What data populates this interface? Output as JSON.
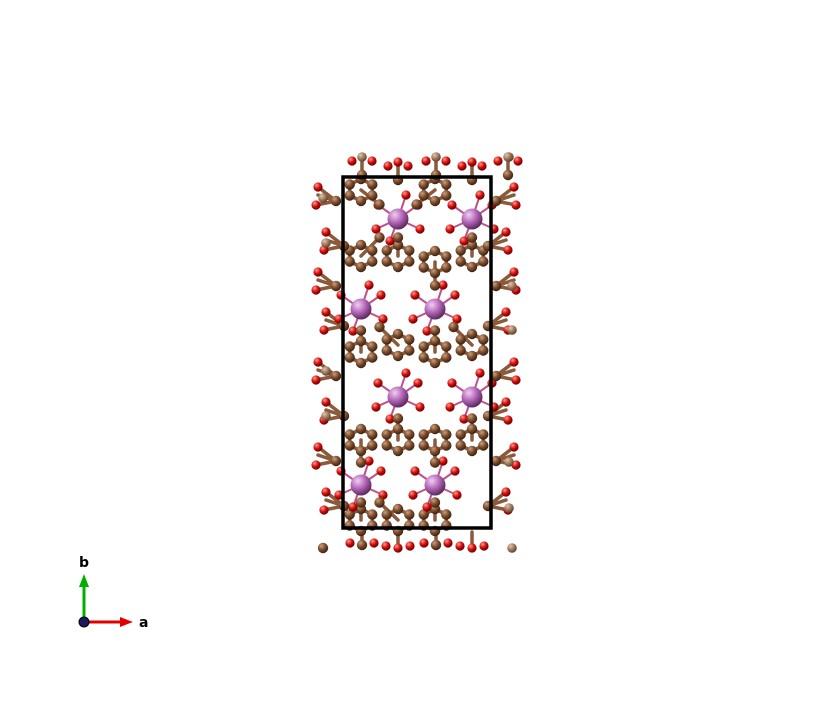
{
  "structure_view": {
    "colors": {
      "background": "#ffffff",
      "unit_cell": "#000000",
      "carbon": "#7a4a2a",
      "carbon_light": "#a07a5c",
      "oxygen": "#d40b0b",
      "oxygen_light": "#e05050",
      "metal": "#b064b4",
      "bond": "#8a5a3a"
    },
    "atom_types": [
      "carbon",
      "oxygen",
      "metal"
    ]
  },
  "axes": {
    "b_label": "b",
    "a_label": "a",
    "colors": {
      "a": "#e00000",
      "b": "#00b000",
      "c": "#1a1a60"
    }
  }
}
